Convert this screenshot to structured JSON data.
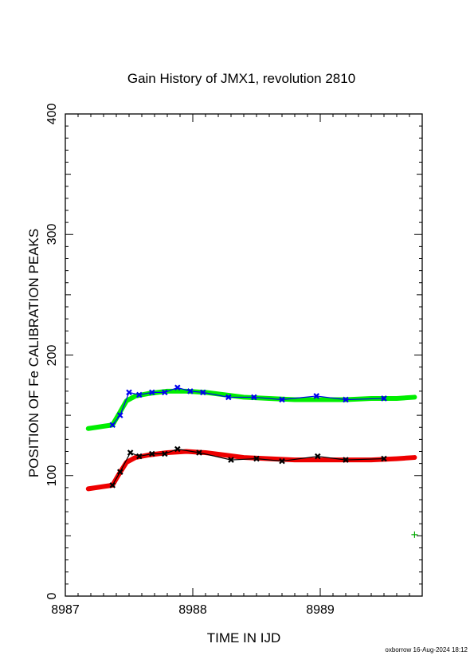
{
  "chart_data": {
    "type": "line",
    "title": "Gain History of JMX1, revolution 2810",
    "xlabel": "TIME IN IJD",
    "ylabel": "POSITION OF Fe CALIBRATION PEAKS",
    "xlim": [
      8987,
      8989.8
    ],
    "ylim": [
      0,
      400
    ],
    "x_tick_labels": [
      "8987",
      "8988",
      "8989"
    ],
    "y_tick_labels": [
      "0",
      "100",
      "200",
      "300",
      "400"
    ],
    "grid": false,
    "footer": "oxborrow 16-Aug-2024 18:12",
    "series": [
      {
        "color": "#00ee00",
        "kind": "fit",
        "x": [
          8987.18,
          8987.37,
          8987.42,
          8987.48,
          8987.55,
          8987.65,
          8987.8,
          8987.95,
          8988.1,
          8988.25,
          8988.4,
          8988.6,
          8988.8,
          8989.0,
          8989.2,
          8989.4,
          8989.6,
          8989.74
        ],
        "values": [
          139,
          142,
          151,
          162,
          166,
          168,
          170,
          170,
          169,
          167,
          165,
          164,
          163,
          163,
          163,
          164,
          164,
          165
        ]
      },
      {
        "color": "#0000ee",
        "kind": "measured",
        "x": [
          8987.37,
          8987.43,
          8987.5,
          8987.58,
          8987.68,
          8987.78,
          8987.88,
          8987.98,
          8988.08,
          8988.28,
          8988.48,
          8988.7,
          8988.97,
          8989.2,
          8989.5
        ],
        "values": [
          142,
          150,
          169,
          167,
          169,
          169,
          173,
          170,
          169,
          165,
          165,
          163,
          166,
          163,
          164
        ]
      },
      {
        "color": "#ee0000",
        "kind": "fit",
        "x": [
          8987.18,
          8987.37,
          8987.42,
          8987.48,
          8987.55,
          8987.65,
          8987.8,
          8987.95,
          8988.1,
          8988.25,
          8988.4,
          8988.6,
          8988.8,
          8989.0,
          8989.2,
          8989.4,
          8989.6,
          8989.74
        ],
        "values": [
          89,
          92,
          101,
          111,
          115,
          117,
          119,
          120,
          119,
          117,
          115,
          114,
          113,
          113,
          113,
          113,
          114,
          115
        ]
      },
      {
        "color": "#000000",
        "kind": "measured",
        "x": [
          8987.37,
          8987.43,
          8987.51,
          8987.58,
          8987.68,
          8987.78,
          8987.88,
          8988.05,
          8988.3,
          8988.5,
          8988.7,
          8988.98,
          8989.2,
          8989.5
        ],
        "values": [
          92,
          103,
          119,
          116,
          118,
          118,
          122,
          119,
          113,
          114,
          112,
          116,
          113,
          114
        ]
      },
      {
        "color": "#00aa00",
        "kind": "marker",
        "x": [
          8989.74
        ],
        "values": [
          51
        ]
      }
    ]
  }
}
